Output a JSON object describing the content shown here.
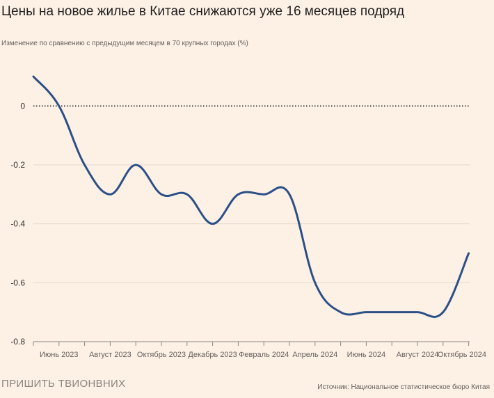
{
  "title": "Цены на новое жилье в Китае снижаются уже 16 месяцев подряд",
  "subtitle": "Изменение по сравнению с предыдущим месяцем в 70 крупных городах (%)",
  "footer": {
    "left": "ПРИШИТЬ ТВИОНВНИХ",
    "source": "Источник: Национальное статистическое бюро Китая"
  },
  "colors": {
    "line": "#2b4f87",
    "grid": "#e2d8ce",
    "zero_line": "#1a1a1a",
    "background": "#fdf1e6"
  },
  "chart_data": {
    "type": "line",
    "title": "Цены на новое жилье в Китае снижаются уже 16 месяцев подряд",
    "ylabel": "Изменение по сравнению с предыдущим месяцем в 70 крупных городах (%)",
    "ylim": [
      -0.8,
      0.1
    ],
    "yticks": [
      0,
      -0.2,
      -0.4,
      -0.6,
      -0.8
    ],
    "ytick_labels": [
      "0",
      "-0.2",
      "-0.4",
      "-0.6",
      "-0.8"
    ],
    "xlim": [
      "2023-05",
      "2024-10"
    ],
    "xtick_labels": [
      {
        "at": "2023-06",
        "label": "Июнь 2023",
        "small": false
      },
      {
        "at": "2023-08",
        "label": "Август 2023",
        "small": false
      },
      {
        "at": "2023-10",
        "label": "Октябрь 2023",
        "small": true
      },
      {
        "at": "2023-12",
        "label": "Декабрь 2023",
        "small": true
      },
      {
        "at": "2024-02",
        "label": "Февраль 2024",
        "small": true
      },
      {
        "at": "2024-04",
        "label": "Апрель 2024",
        "small": true
      },
      {
        "at": "2024-06",
        "label": "Июнь 2024",
        "small": false
      },
      {
        "at": "2024-08",
        "label": "Август 2024",
        "small": false
      },
      {
        "at": "2024-10",
        "label": "Октябрь 2024",
        "small": false
      }
    ],
    "grid": true,
    "zero_line": "dotted",
    "series": [
      {
        "x": [
          "2023-05",
          "2023-06",
          "2023-07",
          "2023-08",
          "2023-09",
          "2023-10",
          "2023-11",
          "2023-12",
          "2024-01",
          "2024-02",
          "2024-03",
          "2024-04",
          "2024-05",
          "2024-06",
          "2024-07",
          "2024-08",
          "2024-09",
          "2024-10"
        ],
        "values": [
          0.1,
          0.0,
          -0.2,
          -0.3,
          -0.2,
          -0.3,
          -0.3,
          -0.4,
          -0.3,
          -0.3,
          -0.3,
          -0.6,
          -0.7,
          -0.7,
          -0.7,
          -0.7,
          -0.7,
          -0.5
        ]
      }
    ]
  }
}
